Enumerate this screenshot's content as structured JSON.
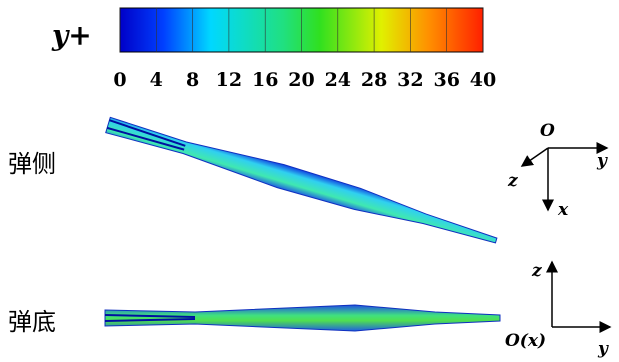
{
  "colorbar": {
    "label": "y+",
    "range": [
      0,
      40
    ],
    "ticks": [
      0,
      4,
      8,
      12,
      16,
      20,
      24,
      28,
      32,
      36,
      40
    ]
  },
  "views": [
    {
      "label": "弹侧"
    },
    {
      "label": "弹底"
    }
  ],
  "axes_side": {
    "origin": "O",
    "y": "y",
    "z": "z",
    "x": "x"
  },
  "axes_bottom": {
    "origin": "O(x)",
    "y": "y",
    "z": "z"
  }
}
